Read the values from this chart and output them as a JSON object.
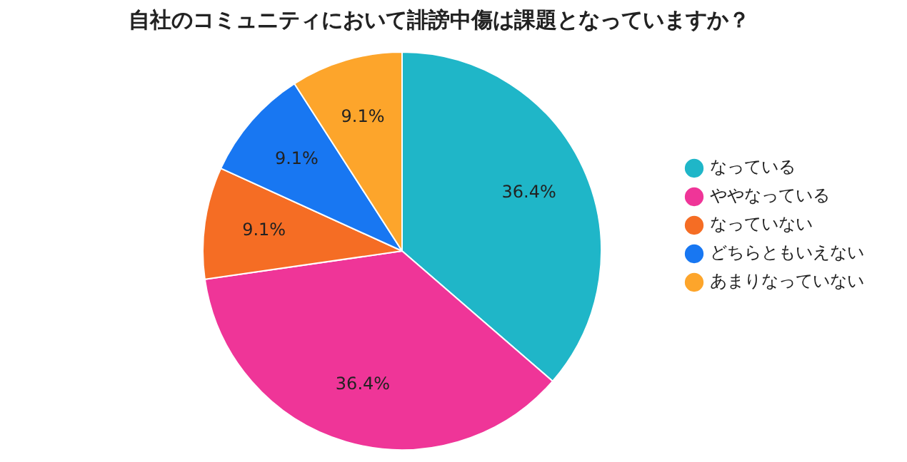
{
  "chart_data": {
    "type": "pie",
    "title": "自社のコミュニティにおいて誹謗中傷は課題となっていますか？",
    "categories": [
      "なっている",
      "ややなっている",
      "なっていない",
      "どちらともいえない",
      "あまりなっていない"
    ],
    "values": [
      36.4,
      36.4,
      9.1,
      9.1,
      9.1
    ],
    "value_labels": [
      "36.4%",
      "36.4%",
      "9.1%",
      "9.1%",
      "9.1%"
    ],
    "colors": [
      "#1fb6c8",
      "#ef3598",
      "#f56d24",
      "#1877f2",
      "#fda52b"
    ],
    "legend": "right"
  }
}
